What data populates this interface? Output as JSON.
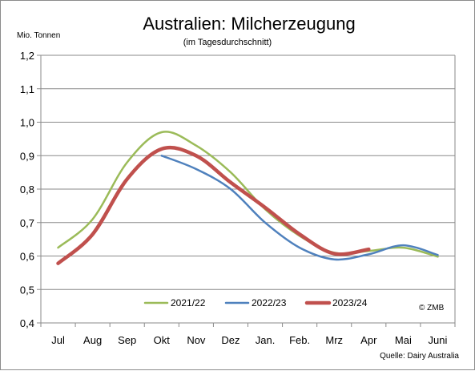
{
  "chart_data": {
    "type": "line",
    "title": "Australien: Milcherzeugung",
    "subtitle": "(im Tagesdurchschnitt)",
    "ylabel": "Mio. Tonnen",
    "xlabel": "",
    "ylim": [
      0.4,
      1.2
    ],
    "grid": true,
    "legend_position": "bottom-center",
    "categories": [
      "Jul",
      "Aug",
      "Sep",
      "Okt",
      "Nov",
      "Dez",
      "Jan.",
      "Feb.",
      "Mrz",
      "Apr",
      "Mai",
      "Juni"
    ],
    "y_ticks": [
      "0,4",
      "0,5",
      "0,6",
      "0,7",
      "0,8",
      "0,9",
      "1,0",
      "1,1",
      "1,2"
    ],
    "series": [
      {
        "name": "2021/22",
        "color": "#9bbb59",
        "values": [
          0.625,
          0.71,
          0.88,
          0.97,
          0.93,
          0.85,
          0.74,
          0.66,
          0.61,
          0.615,
          0.625,
          0.598
        ]
      },
      {
        "name": "2022/23",
        "color": "#4f81bd",
        "values": [
          null,
          null,
          null,
          0.9,
          0.86,
          0.8,
          0.7,
          0.625,
          0.59,
          0.605,
          0.632,
          0.603
        ]
      },
      {
        "name": "2023/24",
        "color": "#c0504d",
        "values": [
          0.578,
          0.665,
          0.83,
          0.92,
          0.9,
          0.82,
          0.745,
          0.665,
          0.607,
          0.62,
          null,
          null
        ]
      }
    ],
    "annotations": {
      "copyright": "© ZMB",
      "source": "Quelle: Dairy Australia"
    }
  }
}
